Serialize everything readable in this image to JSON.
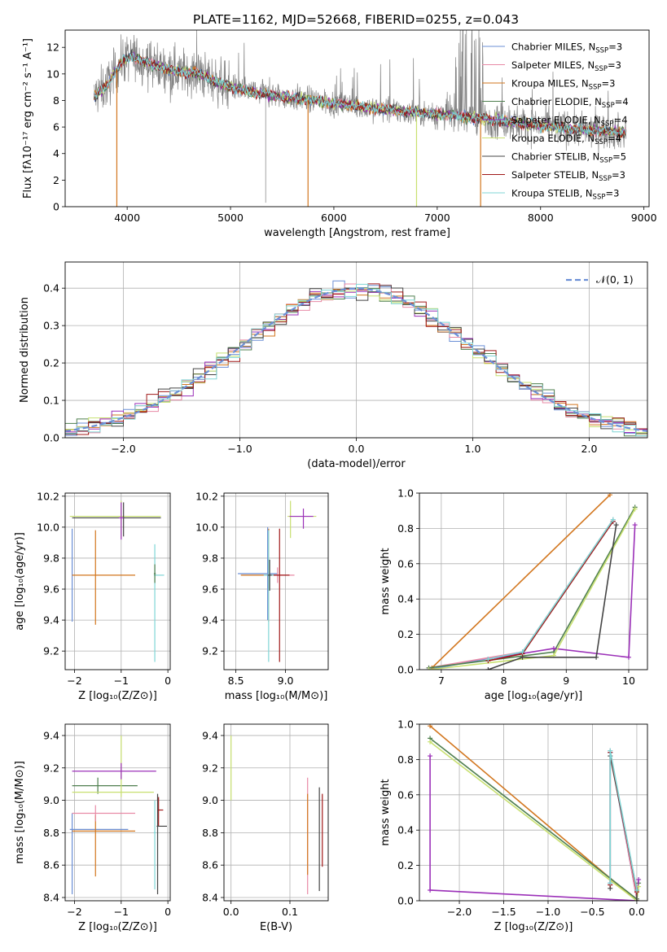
{
  "figure_title": "PLATE=1162, MJD=52668, FIBERID=0255, z=0.043",
  "series_colors": {
    "Chabrier MILES": "#6b8fd6",
    "Salpeter MILES": "#e88aa6",
    "Kroupa MILES": "#d2761e",
    "Chabrier ELODIE": "#4f7f4f",
    "Salpeter ELODIE": "#9b30b8",
    "Kroupa ELODIE": "#c8e070",
    "Chabrier STELIB": "#444444",
    "Salpeter STELIB": "#a01818",
    "Kroupa STELIB": "#7fd6d6"
  },
  "chart_data": [
    {
      "id": "spectrum",
      "type": "line",
      "title": "PLATE=1162, MJD=52668, FIBERID=0255, z=0.043",
      "xlabel": "wavelength [Angstrom, rest frame]",
      "ylabel": "Flux [fλ10⁻¹⁷ erg cm⁻² s⁻¹ A⁻¹]",
      "xlim": [
        3400,
        9050
      ],
      "ylim": [
        0,
        13.3
      ],
      "xticks": [
        4000,
        5000,
        6000,
        7000,
        8000,
        9000
      ],
      "yticks": [
        0,
        2,
        4,
        6,
        8,
        10,
        12
      ],
      "legend_position": "upper-right",
      "legend": [
        {
          "name": "Chabrier MILES",
          "nssp": "3"
        },
        {
          "name": "Salpeter MILES",
          "nssp": "3"
        },
        {
          "name": "Kroupa MILES",
          "nssp": "3"
        },
        {
          "name": "Chabrier ELODIE",
          "nssp": "4"
        },
        {
          "name": "Salpeter ELODIE",
          "nssp": "4"
        },
        {
          "name": "Kroupa ELODIE",
          "nssp": "4"
        },
        {
          "name": "Chabrier STELIB",
          "nssp": "5"
        },
        {
          "name": "Salpeter STELIB",
          "nssp": "3"
        },
        {
          "name": "Kroupa STELIB",
          "nssp": "3"
        }
      ],
      "continuum": {
        "x": [
          3680,
          3800,
          3950,
          4050,
          4150,
          4300,
          4500,
          4700,
          4900,
          5100,
          5400,
          5700,
          6000,
          6400,
          6800,
          7200,
          7600,
          8000,
          8400,
          8830
        ],
        "y": [
          8.3,
          9.1,
          11.0,
          11.3,
          11.0,
          10.5,
          10.2,
          10.0,
          9.3,
          8.8,
          8.4,
          8.1,
          7.8,
          7.4,
          7.1,
          6.8,
          6.5,
          6.1,
          5.8,
          5.6
        ]
      },
      "data_color": "#808080",
      "grid": false
    },
    {
      "id": "residuals",
      "type": "step",
      "xlabel": "(data-model)/error",
      "ylabel": "Normed distribution",
      "xlim": [
        -2.5,
        2.5
      ],
      "ylim": [
        0,
        0.47
      ],
      "xticks": [
        -2,
        -1,
        0,
        1,
        2
      ],
      "yticks": [
        0.0,
        0.1,
        0.2,
        0.3,
        0.4
      ],
      "legend_position": "upper-right",
      "reference_curve": {
        "label": "𝒩(0, 1)",
        "mean": 0,
        "sigma": 1,
        "color": "#6b8fd6",
        "style": "dashed"
      },
      "bin_width": 0.1,
      "grid": true
    },
    {
      "id": "age-vs-Z",
      "type": "errorbar",
      "xlabel": "Z [log₁₀(Z/Z⊙)]",
      "ylabel": "age  [log₁₀(age/yr)]",
      "xlim": [
        -2.2,
        0.05
      ],
      "ylim": [
        9.08,
        10.22
      ],
      "xticks": [
        -2,
        -1,
        0
      ],
      "yticks": [
        9.2,
        9.4,
        9.6,
        9.8,
        10.0,
        10.2
      ],
      "grid": true,
      "points": [
        {
          "series": "Chabrier MILES",
          "x": -2.05,
          "y": 9.69,
          "xerr": [
            0.0,
            0.0
          ],
          "yerr": [
            0.3,
            0.3
          ]
        },
        {
          "series": "Kroupa MILES",
          "x": -1.55,
          "y": 9.69,
          "xerr": [
            0.5,
            0.85
          ],
          "yerr": [
            0.32,
            0.29
          ]
        },
        {
          "series": "Kroupa ELODIE",
          "x": -1.0,
          "y": 10.07,
          "xerr": [
            1.1,
            0.85
          ],
          "yerr": [
            0.14,
            0.1
          ]
        },
        {
          "series": "Chabrier STELIB",
          "x": -0.95,
          "y": 10.06,
          "xerr": [
            1.1,
            0.8
          ],
          "yerr": [
            0.12,
            0.1
          ]
        },
        {
          "series": "Salpeter ELODIE",
          "x": -1.0,
          "y": 10.06,
          "xerr": [
            0.05,
            0.05
          ],
          "yerr": [
            0.14,
            0.1
          ]
        },
        {
          "series": "Kroupa STELIB",
          "x": -0.28,
          "y": 9.69,
          "xerr": [
            0.02,
            0.2
          ],
          "yerr": [
            0.56,
            0.2
          ]
        },
        {
          "series": "Chabrier ELODIE",
          "x": -0.28,
          "y": 9.7,
          "xerr": [
            0.02,
            0.02
          ],
          "yerr": [
            0.06,
            0.06
          ]
        }
      ]
    },
    {
      "id": "age-vs-mass",
      "type": "errorbar",
      "xlabel": "mass [log₁₀(M/M⊙)]",
      "ylabel": "",
      "xlim": [
        8.38,
        9.43
      ],
      "ylim": [
        9.08,
        10.22
      ],
      "xticks": [
        8.5,
        9.0
      ],
      "yticks": [
        9.2,
        9.4,
        9.6,
        9.8,
        10.0,
        10.2
      ],
      "grid": true,
      "points": [
        {
          "series": "Kroupa MILES",
          "x": 8.83,
          "y": 9.69,
          "xerr": [
            0.28,
            0.1
          ],
          "yerr": [
            0.3,
            0.3
          ]
        },
        {
          "series": "Chabrier MILES",
          "x": 8.82,
          "y": 9.7,
          "xerr": [
            0.3,
            0.1
          ],
          "yerr": [
            0.3,
            0.3
          ]
        },
        {
          "series": "Salpeter MILES",
          "x": 8.92,
          "y": 9.69,
          "xerr": [
            0.1,
            0.17
          ],
          "yerr": [
            0.05,
            0.05
          ]
        },
        {
          "series": "Salpeter STELIB",
          "x": 8.94,
          "y": 9.69,
          "xerr": [
            0.08,
            0.1
          ],
          "yerr": [
            0.56,
            0.3
          ]
        },
        {
          "series": "Kroupa STELIB",
          "x": 8.83,
          "y": 9.69,
          "xerr": [
            0.05,
            0.05
          ],
          "yerr": [
            0.56,
            0.29
          ]
        },
        {
          "series": "Kroupa ELODIE",
          "x": 9.05,
          "y": 10.07,
          "xerr": [
            0.03,
            0.26
          ],
          "yerr": [
            0.14,
            0.1
          ]
        },
        {
          "series": "Salpeter ELODIE",
          "x": 9.18,
          "y": 10.07,
          "xerr": [
            0.14,
            0.1
          ],
          "yerr": [
            0.08,
            0.05
          ]
        },
        {
          "series": "Chabrier STELIB",
          "x": 8.84,
          "y": 9.69,
          "xerr": [
            0.02,
            0.02
          ],
          "yerr": [
            0.1,
            0.1
          ]
        }
      ]
    },
    {
      "id": "mass-weight-vs-age",
      "type": "line",
      "xlabel": "age  [log₁₀(age/yr)]",
      "ylabel": "mass weight",
      "xlim": [
        6.65,
        10.3
      ],
      "ylim": [
        0,
        1.0
      ],
      "xticks": [
        7,
        8,
        9,
        10
      ],
      "yticks": [
        0.0,
        0.2,
        0.4,
        0.6,
        0.8,
        1.0
      ],
      "grid": true,
      "series": [
        {
          "name": "Chabrier MILES",
          "x": [
            6.8,
            8.3,
            9.75
          ],
          "y": [
            0.0,
            0.1,
            0.84
          ]
        },
        {
          "name": "Salpeter MILES",
          "x": [
            6.8,
            8.3,
            9.75
          ],
          "y": [
            0.01,
            0.1,
            0.85
          ]
        },
        {
          "name": "Kroupa MILES",
          "x": [
            6.85,
            9.7
          ],
          "y": [
            0.01,
            0.99
          ]
        },
        {
          "name": "Chabrier ELODIE",
          "x": [
            6.8,
            8.8,
            10.1
          ],
          "y": [
            0.01,
            0.1,
            0.92
          ]
        },
        {
          "name": "Salpeter ELODIE",
          "x": [
            7.75,
            8.8,
            10.0,
            10.1
          ],
          "y": [
            0.06,
            0.12,
            0.07,
            0.82
          ]
        },
        {
          "name": "Kroupa ELODIE",
          "x": [
            6.8,
            8.8,
            10.1
          ],
          "y": [
            0.0,
            0.08,
            0.91
          ]
        },
        {
          "name": "Chabrier STELIB",
          "x": [
            7.75,
            8.3,
            9.48,
            9.8
          ],
          "y": [
            0.0,
            0.07,
            0.07,
            0.82
          ]
        },
        {
          "name": "Salpeter STELIB",
          "x": [
            7.75,
            8.3,
            9.75
          ],
          "y": [
            0.05,
            0.09,
            0.84
          ]
        },
        {
          "name": "Kroupa STELIB",
          "x": [
            7.75,
            8.3,
            9.75
          ],
          "y": [
            0.06,
            0.1,
            0.85
          ]
        }
      ]
    },
    {
      "id": "mass-vs-Z",
      "type": "errorbar",
      "xlabel": "Z [log₁₀(Z/Z⊙)]",
      "ylabel": "mass [log₁₀(M/M⊙)]",
      "xlim": [
        -2.2,
        0.05
      ],
      "ylim": [
        8.38,
        9.47
      ],
      "xticks": [
        -2,
        -1,
        0
      ],
      "yticks": [
        8.4,
        8.6,
        8.8,
        9.0,
        9.2,
        9.4
      ],
      "grid": true,
      "points": [
        {
          "series": "Chabrier MILES",
          "x": -2.05,
          "y": 8.82,
          "xerr": [
            0.05,
            1.2
          ],
          "yerr": [
            0.4,
            0.1
          ]
        },
        {
          "series": "Kroupa MILES",
          "x": -1.55,
          "y": 8.81,
          "xerr": [
            0.5,
            0.85
          ],
          "yerr": [
            0.28,
            0.1
          ]
        },
        {
          "series": "Salpeter MILES",
          "x": -1.55,
          "y": 8.92,
          "xerr": [
            0.5,
            0.85
          ],
          "yerr": [
            0.05,
            0.05
          ]
        },
        {
          "series": "Chabrier ELODIE",
          "x": -1.5,
          "y": 9.09,
          "xerr": [
            0.55,
            0.85
          ],
          "yerr": [
            0.05,
            0.05
          ]
        },
        {
          "series": "Kroupa ELODIE",
          "x": -1.0,
          "y": 9.05,
          "xerr": [
            1.05,
            0.7
          ],
          "yerr": [
            0.03,
            0.35
          ]
        },
        {
          "series": "Salpeter ELODIE",
          "x": -1.0,
          "y": 9.18,
          "xerr": [
            1.05,
            0.75
          ],
          "yerr": [
            0.05,
            0.05
          ]
        },
        {
          "series": "Salpeter STELIB",
          "x": -0.2,
          "y": 8.94,
          "xerr": [
            0.02,
            0.1
          ],
          "yerr": [
            0.1,
            0.08
          ]
        },
        {
          "series": "Kroupa STELIB",
          "x": -0.28,
          "y": 8.8,
          "xerr": [
            0.02,
            0.02
          ],
          "yerr": [
            0.35,
            0.2
          ]
        },
        {
          "series": "Chabrier STELIB",
          "x": -0.22,
          "y": 8.84,
          "xerr": [
            0.02,
            0.2
          ],
          "yerr": [
            0.42,
            0.2
          ]
        }
      ]
    },
    {
      "id": "mass-vs-EBV",
      "type": "errorbar",
      "xlabel": "E(B-V)",
      "ylabel": "",
      "xlim": [
        -0.012,
        0.165
      ],
      "ylim": [
        8.38,
        9.47
      ],
      "xticks": [
        0.0,
        0.1
      ],
      "yticks": [
        8.4,
        8.6,
        8.8,
        9.0,
        9.2,
        9.4
      ],
      "grid": true,
      "points": [
        {
          "series": "Kroupa ELODIE",
          "x": 0.0,
          "y": 9.2,
          "xerr": [
            0.0,
            0.0
          ],
          "yerr": [
            0.2,
            0.2
          ]
        },
        {
          "series": "Salpeter MILES",
          "x": 0.13,
          "y": 8.92,
          "xerr": [
            0.0,
            0.0
          ],
          "yerr": [
            0.5,
            0.22
          ]
        },
        {
          "series": "Kroupa MILES",
          "x": 0.13,
          "y": 8.8,
          "xerr": [
            0.0,
            0.0
          ],
          "yerr": [
            0.26,
            0.24
          ]
        },
        {
          "series": "Chabrier STELIB",
          "x": 0.15,
          "y": 8.84,
          "xerr": [
            0.0,
            0.0
          ],
          "yerr": [
            0.4,
            0.24
          ]
        },
        {
          "series": "Salpeter STELIB",
          "x": 0.155,
          "y": 8.94,
          "xerr": [
            0.0,
            0.0
          ],
          "yerr": [
            0.35,
            0.1
          ]
        }
      ]
    },
    {
      "id": "mass-weight-vs-Z",
      "type": "line",
      "xlabel": "Z [log₁₀(Z/Z⊙)]",
      "ylabel": "mass weight",
      "xlim": [
        -2.45,
        0.12
      ],
      "ylim": [
        0,
        1.0
      ],
      "xticks": [
        -2.0,
        -1.5,
        -1.0,
        -0.5,
        0.0
      ],
      "yticks": [
        0.0,
        0.2,
        0.4,
        0.6,
        0.8,
        1.0
      ],
      "grid": true,
      "series": [
        {
          "name": "Chabrier MILES",
          "x": [
            -0.3,
            -0.3,
            0.0
          ],
          "y": [
            0.1,
            0.84,
            0.01
          ]
        },
        {
          "name": "Salpeter MILES",
          "x": [
            -0.3,
            -0.3,
            0.0
          ],
          "y": [
            0.09,
            0.85,
            0.01
          ]
        },
        {
          "name": "Kroupa MILES",
          "x": [
            -2.33,
            0.0
          ],
          "y": [
            0.99,
            0.0
          ]
        },
        {
          "name": "Chabrier ELODIE",
          "x": [
            -2.33,
            0.0,
            0.02
          ],
          "y": [
            0.92,
            0.01,
            0.1
          ]
        },
        {
          "name": "Salpeter ELODIE",
          "x": [
            -2.33,
            -2.33,
            0.0,
            0.02
          ],
          "y": [
            0.82,
            0.06,
            0.0,
            0.12
          ]
        },
        {
          "name": "Kroupa ELODIE",
          "x": [
            -2.33,
            0.0,
            0.02
          ],
          "y": [
            0.9,
            0.0,
            0.08
          ]
        },
        {
          "name": "Chabrier STELIB",
          "x": [
            -0.3,
            -0.3,
            0.0,
            0.0
          ],
          "y": [
            0.07,
            0.82,
            0.06,
            0.0
          ]
        },
        {
          "name": "Salpeter STELIB",
          "x": [
            -0.3,
            -0.3,
            0.0
          ],
          "y": [
            0.09,
            0.84,
            0.05
          ]
        },
        {
          "name": "Kroupa STELIB",
          "x": [
            -0.3,
            -0.3,
            0.0
          ],
          "y": [
            0.1,
            0.85,
            0.06
          ]
        }
      ]
    }
  ]
}
